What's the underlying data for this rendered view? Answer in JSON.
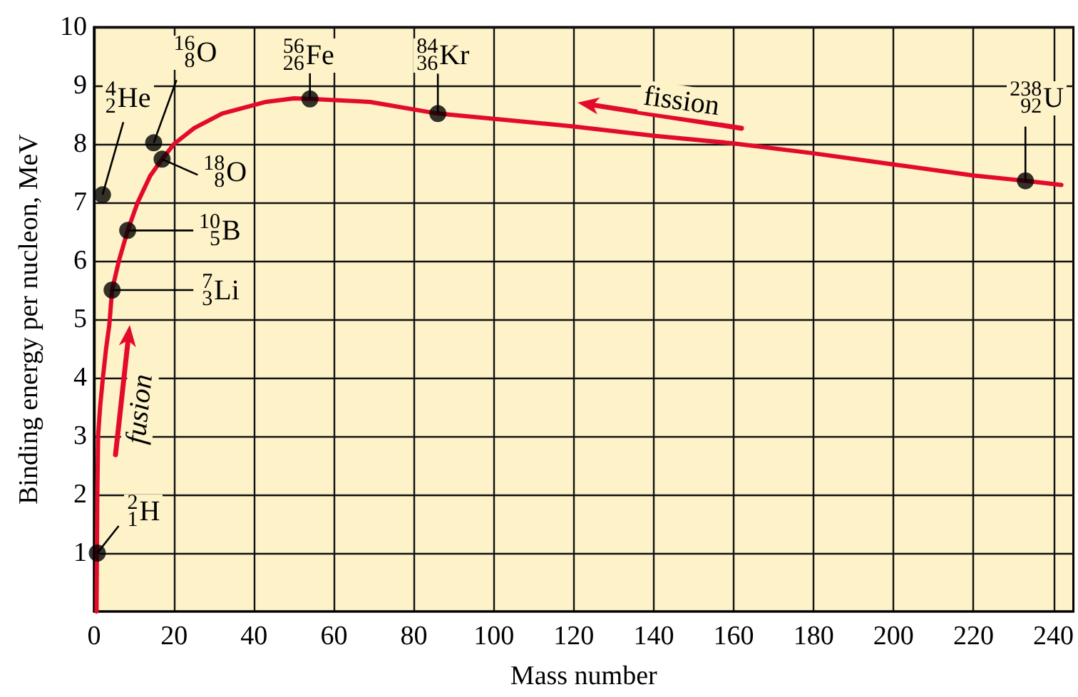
{
  "chart_data": {
    "type": "line",
    "xlabel": "Mass number",
    "ylabel": "Binding energy per nucleon, MeV",
    "xlim": [
      0,
      245
    ],
    "xticks": [
      0,
      20,
      40,
      60,
      80,
      100,
      120,
      140,
      160,
      180,
      200,
      220,
      240
    ],
    "ylim": [
      0,
      10
    ],
    "yticks": [
      1,
      2,
      3,
      4,
      5,
      6,
      7,
      8,
      9,
      10
    ],
    "grid": true,
    "series": [
      {
        "type": "line",
        "color": "#e30b2c",
        "marker": "none",
        "x": [
          0.6,
          0.7,
          0.8,
          1,
          1.5,
          2.2,
          3,
          3.8,
          4.5,
          6.2,
          8.4,
          10.9,
          14,
          17,
          20,
          25,
          32,
          43,
          50,
          54,
          69,
          86,
          120,
          140,
          160,
          180,
          200,
          220,
          233,
          242
        ],
        "values": [
          0,
          1,
          2,
          3,
          3.5,
          4,
          4.5,
          4.9,
          5.5,
          6,
          6.52,
          7,
          7.45,
          7.74,
          8,
          8.27,
          8.52,
          8.72,
          8.78,
          8.77,
          8.72,
          8.52,
          8.3,
          8.14,
          8.01,
          7.84,
          7.65,
          7.46,
          7.37,
          7.3
        ]
      },
      {
        "type": "scatter",
        "color": "#000000",
        "marker": "circle",
        "x": [
          0.8,
          2.1,
          4.5,
          8.4,
          14.9,
          17,
          54,
          86,
          233
        ],
        "values": [
          1,
          7.13,
          5.5,
          6.52,
          8.02,
          7.74,
          8.77,
          8.52,
          7.37
        ],
        "value_labels": [
          "$^{2}$$_{1}$H",
          "$^{4}$$_{2}$He",
          "$^{7}$$_{3}$Li",
          "$^{10}$$_{5}$B",
          "$^{16}$$_{8}$O",
          "$^{18}$$_{8}$O",
          "$^{56}$$_{26}$Fe",
          "$^{84}$$_{36}$Kr",
          "$^{238}$$_{92}$U"
        ]
      }
    ],
    "annotations": [
      "fusion",
      "fission"
    ]
  }
}
